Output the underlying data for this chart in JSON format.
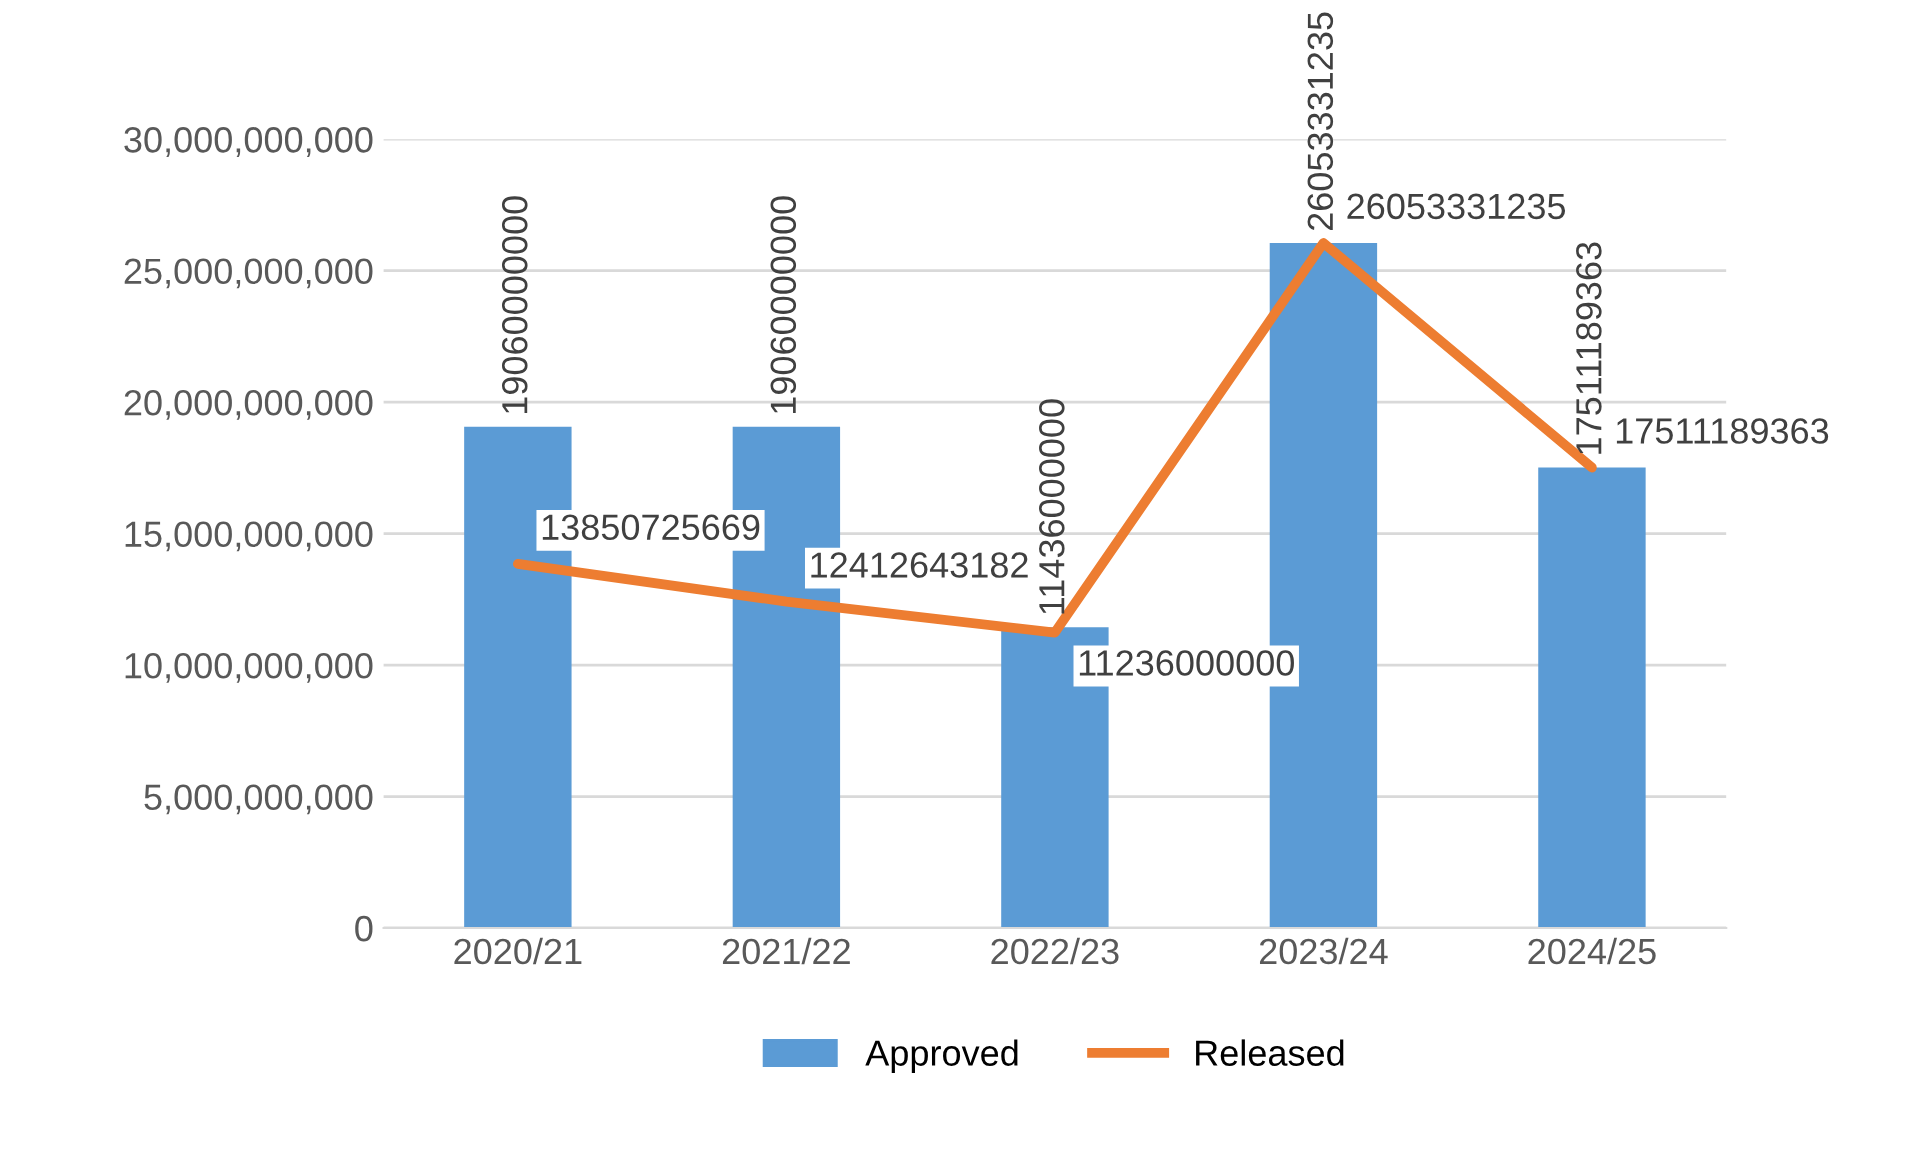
{
  "chart_data": {
    "type": "bar",
    "categories": [
      "2020/21",
      "2021/22",
      "2022/23",
      "2023/24",
      "2024/25"
    ],
    "series": [
      {
        "name": "Approved",
        "color": "#5b9bd5",
        "values": [
          19060000000,
          19060000000,
          11436000000,
          26053331235,
          17511189363
        ]
      },
      {
        "name": "Released",
        "type": "line",
        "color": "#ed7d31",
        "values": [
          13850725669,
          12412643182,
          11236000000,
          26053331235,
          17511189363
        ]
      }
    ],
    "ylim": [
      0,
      30000000000
    ],
    "yticks": [
      {
        "value": 0,
        "label": "0"
      },
      {
        "value": 5000000000,
        "label": "5,000,000,000"
      },
      {
        "value": 10000000000,
        "label": "10,000,000,000"
      },
      {
        "value": 15000000000,
        "label": "15,000,000,000"
      },
      {
        "value": 20000000000,
        "label": "20,000,000,000"
      },
      {
        "value": 25000000000,
        "label": "25,000,000,000"
      },
      {
        "value": 30000000000,
        "label": "30,000,000,000"
      }
    ],
    "grid": "y",
    "legend": "bottom",
    "data_labels": true,
    "marker": "none",
    "line_style": "solid"
  }
}
